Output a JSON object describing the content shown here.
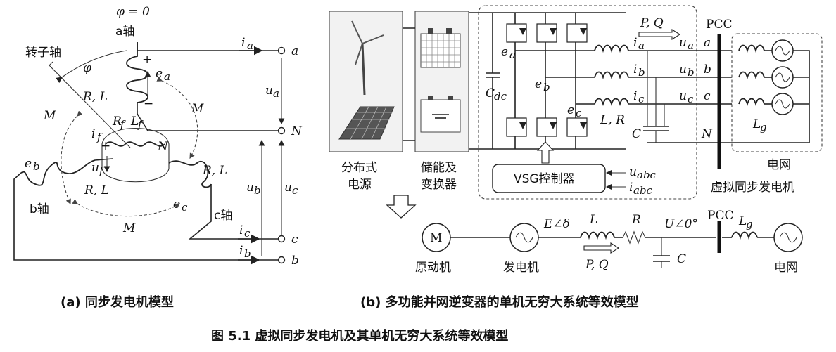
{
  "panel_a": {
    "phi_zero": "φ = 0",
    "a_axis": "a轴",
    "rotor_axis": "转子轴",
    "phi": "φ",
    "b_axis": "b轴",
    "c_axis": "c轴",
    "M": "M",
    "RL": "R, L",
    "Rf": "R",
    "Rf_sub": "f",
    "Lf": "L",
    "Lf_sub": "f",
    "if": "i",
    "if_sub": "f",
    "uf": "u",
    "uf_sub": "f",
    "ea": "e",
    "ea_sub": "a",
    "eb": "e",
    "eb_sub": "b",
    "ec": "e",
    "ec_sub": "c",
    "ia": "i",
    "ia_sub": "a",
    "ib": "i",
    "ib_sub": "b",
    "ic": "i",
    "ic_sub": "c",
    "ua": "u",
    "ua_sub": "a",
    "ub": "u",
    "ub_sub": "b",
    "uc": "u",
    "uc_sub": "c",
    "N": "N",
    "term_a": "a",
    "term_N": "N",
    "term_c": "c",
    "term_b": "b",
    "plus": "+",
    "minus": "−"
  },
  "panel_b": {
    "dist_source": [
      "分布式",
      "电源"
    ],
    "storage": [
      "储能及",
      "变换器"
    ],
    "Cdc": "C",
    "Cdc_sub": "dc",
    "PQ": "P, Q",
    "ea": "e",
    "ea_sub": "a",
    "eb": "e",
    "eb_sub": "b",
    "ec": "e",
    "ec_sub": "c",
    "ia": "i",
    "ia_sub": "a",
    "ib": "i",
    "ib_sub": "b",
    "ic": "i",
    "ic_sub": "c",
    "ua": "u",
    "ua_sub": "a",
    "ub": "u",
    "ub_sub": "b",
    "uc": "u",
    "uc_sub": "c",
    "LR": "L, R",
    "C": "C",
    "pcc": "PCC",
    "ta": "a",
    "tb": "b",
    "tc": "c",
    "tN": "N",
    "Lg": "L",
    "Lg_sub": "g",
    "grid": "电网",
    "vsg_controller": "VSG控制器",
    "uabc": "u",
    "uabc_sub": "abc",
    "iabc": "i",
    "iabc_sub": "abc",
    "vsg_label": "虚拟同步发电机",
    "eq_M": "M",
    "eq_prime_mover": "原动机",
    "eq_generator": "发电机",
    "eq_E": "E∠δ",
    "eq_L": "L",
    "eq_R": "R",
    "eq_U": "U∠0°",
    "eq_C": "C",
    "eq_PQ": "P, Q",
    "eq_pcc": "PCC",
    "eq_Lg": "L",
    "eq_Lg_sub": "g",
    "eq_grid": "电网"
  },
  "captions": {
    "a": "(a)  同步发电机模型",
    "b": "(b)  多功能并网逆变器的单机无穷大系统等效模型",
    "figure": "图 5.1    虚拟同步发电机及其单机无穷大系统等效模型"
  }
}
